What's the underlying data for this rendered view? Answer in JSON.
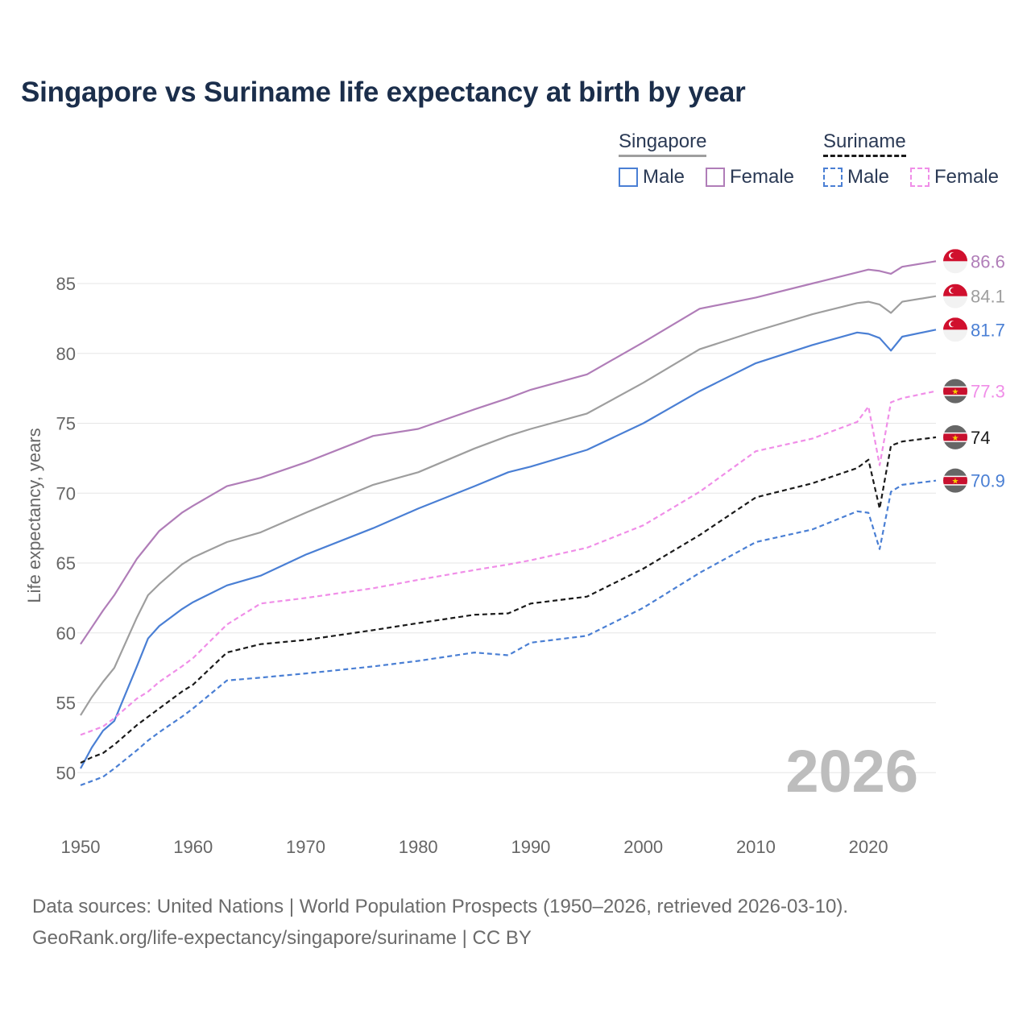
{
  "title": "Singapore vs Suriname life expectancy at birth by year",
  "legend": {
    "groups": [
      {
        "name": "Singapore",
        "items": [
          {
            "label": "Male",
            "color": "#4a7fd4",
            "dashed": false
          },
          {
            "label": "Female",
            "color": "#b07db8",
            "dashed": false
          }
        ]
      },
      {
        "name": "Suriname",
        "items": [
          {
            "label": "Male",
            "color": "#4a7fd4",
            "dashed": true
          },
          {
            "label": "Female",
            "color": "#f08ee8",
            "dashed": true
          }
        ]
      }
    ]
  },
  "source_line1": "Data sources: United Nations | World Population Prospects (1950–2026, retrieved 2026-03-10).",
  "source_line2": "GeoRank.org/life-expectancy/singapore/suriname | CC BY",
  "year_stamp": "2026",
  "chart_data": {
    "type": "line",
    "title": "Singapore vs Suriname life expectancy at birth by year",
    "xlabel": "",
    "ylabel": "Life expectancy, years",
    "xlim": [
      1950,
      2026
    ],
    "ylim": [
      46.5,
      88
    ],
    "xticks": [
      1950,
      1960,
      1970,
      1980,
      1990,
      2000,
      2010,
      2020
    ],
    "yticks": [
      50,
      55,
      60,
      65,
      70,
      75,
      80,
      85
    ],
    "keyframes": [
      1950,
      1951,
      1952,
      1953,
      1955,
      1956,
      1957,
      1959,
      1960,
      1963,
      1966,
      1970,
      1976,
      1980,
      1985,
      1988,
      1990,
      1995,
      2000,
      2005,
      2010,
      2015,
      2019,
      2020,
      2021,
      2022,
      2023,
      2026
    ],
    "series": [
      {
        "name": "Singapore Female",
        "country": "Singapore",
        "sex": "Female",
        "color": "#b07db8",
        "dashed": false,
        "end_label": "86.6",
        "values": [
          59.2,
          60.4,
          61.6,
          62.7,
          65.3,
          66.3,
          67.3,
          68.6,
          69.1,
          70.5,
          71.1,
          72.2,
          74.1,
          74.6,
          76.0,
          76.8,
          77.4,
          78.5,
          80.8,
          83.2,
          84.0,
          85.0,
          85.8,
          86.0,
          85.9,
          85.7,
          86.2,
          86.6
        ]
      },
      {
        "name": "Both sexes Singapore",
        "country": "Singapore",
        "sex": "Total",
        "color": "#9e9e9e",
        "dashed": false,
        "end_label": "84.1",
        "values": [
          54.1,
          55.4,
          56.5,
          57.5,
          61.1,
          62.7,
          63.5,
          64.9,
          65.4,
          66.5,
          67.2,
          68.6,
          70.6,
          71.5,
          73.2,
          74.1,
          74.6,
          75.7,
          77.9,
          80.3,
          81.6,
          82.8,
          83.6,
          83.7,
          83.5,
          82.9,
          83.7,
          84.1
        ]
      },
      {
        "name": "Singapore Male",
        "country": "Singapore",
        "sex": "Male",
        "color": "#4a7fd4",
        "dashed": false,
        "end_label": "81.7",
        "values": [
          50.3,
          51.8,
          53.0,
          53.7,
          57.6,
          59.6,
          60.5,
          61.7,
          62.2,
          63.4,
          64.1,
          65.6,
          67.5,
          68.9,
          70.5,
          71.5,
          71.9,
          73.1,
          75.0,
          77.3,
          79.3,
          80.6,
          81.5,
          81.4,
          81.1,
          80.2,
          81.2,
          81.7
        ]
      },
      {
        "name": "Suriname Female",
        "country": "Suriname",
        "sex": "Female",
        "color": "#f08ee8",
        "dashed": true,
        "end_label": "77.3",
        "values": [
          52.7,
          53.0,
          53.3,
          53.9,
          55.3,
          55.8,
          56.5,
          57.6,
          58.2,
          60.6,
          62.1,
          62.5,
          63.2,
          63.8,
          64.5,
          64.9,
          65.2,
          66.1,
          67.7,
          70.1,
          73.0,
          73.9,
          75.1,
          76.2,
          72.0,
          76.5,
          76.8,
          77.3
        ]
      },
      {
        "name": "Both sexes Suriname",
        "country": "Suriname",
        "sex": "Total",
        "color": "#1a1a1a",
        "dashed": true,
        "end_label": "74",
        "values": [
          50.7,
          51.1,
          51.4,
          52.0,
          53.4,
          54.0,
          54.6,
          55.8,
          56.3,
          58.6,
          59.2,
          59.5,
          60.2,
          60.7,
          61.3,
          61.4,
          62.1,
          62.6,
          64.6,
          67.0,
          69.7,
          70.7,
          71.8,
          72.4,
          68.9,
          73.4,
          73.7,
          74.0
        ]
      },
      {
        "name": "Suriname Male",
        "country": "Suriname",
        "sex": "Male",
        "color": "#4a7fd4",
        "dashed": true,
        "end_label": "70.9",
        "values": [
          49.1,
          49.4,
          49.7,
          50.3,
          51.6,
          52.3,
          52.9,
          54.0,
          54.6,
          56.6,
          56.8,
          57.1,
          57.6,
          58.0,
          58.6,
          58.4,
          59.3,
          59.8,
          61.8,
          64.3,
          66.5,
          67.4,
          68.7,
          68.6,
          66.0,
          70.1,
          70.6,
          70.9
        ]
      }
    ]
  }
}
